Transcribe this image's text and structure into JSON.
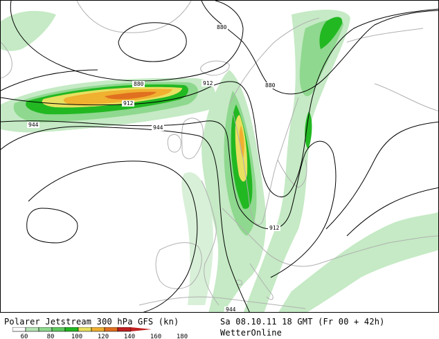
{
  "map": {
    "title": "Polarer Jetstream 300 hPa GFS (kn)",
    "datetime": "Sa 08.10.11 18 GMT (Fr 00 + 42h)",
    "brand": "WetterOnline",
    "contour_labels": [
      "880",
      "880",
      "880",
      "912",
      "912",
      "912",
      "944",
      "944",
      "944"
    ],
    "legend": {
      "ticks": [
        "60",
        "80",
        "100",
        "120",
        "140",
        "160",
        "180"
      ],
      "colors": [
        "#ffffff",
        "#b5e3b5",
        "#8fd88f",
        "#5fc85f",
        "#22b822",
        "#e8e060",
        "#f0b030",
        "#e07020",
        "#c02020"
      ]
    }
  }
}
